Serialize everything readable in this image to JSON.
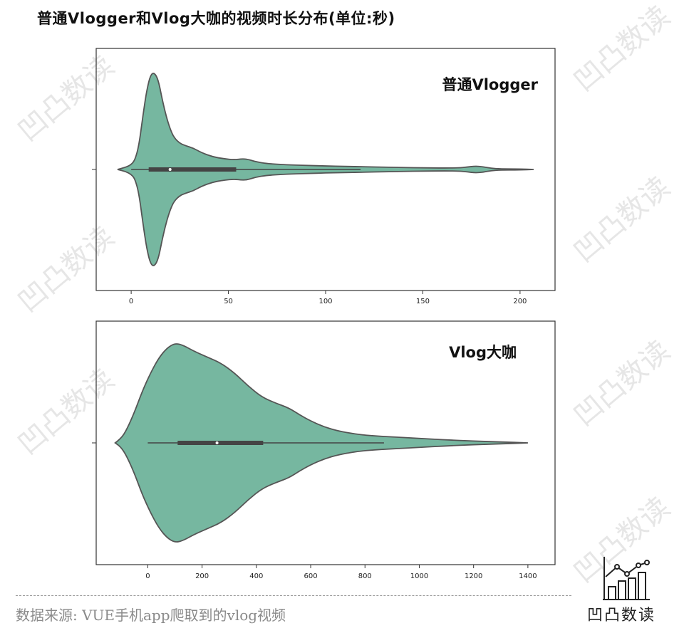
{
  "title": "普通Vlogger和Vlog大咖的视频时长分布(单位:秒)",
  "source": "数据来源: VUE手机app爬取到的vlog视频",
  "logo_text": "凹凸数读",
  "watermark": "凹凸数读",
  "colors": {
    "violin_fill": "#76b7a0",
    "violin_stroke": "#555555",
    "box": "#444444",
    "median": "#ffffff"
  },
  "chart_data": [
    {
      "type": "violin",
      "label": "普通Vlogger",
      "xlim": [
        -18,
        218
      ],
      "xticks": [
        0,
        50,
        100,
        150,
        200
      ],
      "box": {
        "q1": 9,
        "median": 20,
        "q3": 54,
        "whisker_low": 0,
        "whisker_high": 118
      },
      "density": [
        [
          -7,
          0.0
        ],
        [
          -3,
          0.02
        ],
        [
          0,
          0.05
        ],
        [
          2,
          0.1
        ],
        [
          4,
          0.25
        ],
        [
          6,
          0.55
        ],
        [
          8,
          0.82
        ],
        [
          10,
          0.98
        ],
        [
          12,
          1.0
        ],
        [
          14,
          0.92
        ],
        [
          16,
          0.72
        ],
        [
          18,
          0.55
        ],
        [
          20,
          0.42
        ],
        [
          22,
          0.33
        ],
        [
          25,
          0.27
        ],
        [
          28,
          0.245
        ],
        [
          32,
          0.22
        ],
        [
          36,
          0.175
        ],
        [
          42,
          0.13
        ],
        [
          48,
          0.11
        ],
        [
          53,
          0.1
        ],
        [
          57,
          0.11
        ],
        [
          60,
          0.105
        ],
        [
          64,
          0.08
        ],
        [
          70,
          0.06
        ],
        [
          80,
          0.048
        ],
        [
          90,
          0.042
        ],
        [
          100,
          0.036
        ],
        [
          110,
          0.032
        ],
        [
          120,
          0.028
        ],
        [
          130,
          0.024
        ],
        [
          140,
          0.02
        ],
        [
          150,
          0.017
        ],
        [
          160,
          0.015
        ],
        [
          168,
          0.016
        ],
        [
          173,
          0.025
        ],
        [
          177,
          0.035
        ],
        [
          181,
          0.028
        ],
        [
          185,
          0.012
        ],
        [
          190,
          0.006
        ],
        [
          200,
          0.005
        ],
        [
          207,
          0.0
        ]
      ],
      "annotation": "普通Vlogger"
    },
    {
      "type": "violin",
      "label": "Vlog大咖",
      "xlim": [
        -190,
        1500
      ],
      "xticks": [
        0,
        200,
        400,
        600,
        800,
        1000,
        1200,
        1400
      ],
      "box": {
        "q1": 110,
        "median": 255,
        "q3": 425,
        "whisker_low": 0,
        "whisker_high": 870
      },
      "density": [
        [
          -120,
          0.0
        ],
        [
          -100,
          0.04
        ],
        [
          -80,
          0.12
        ],
        [
          -50,
          0.3
        ],
        [
          -20,
          0.52
        ],
        [
          10,
          0.7
        ],
        [
          40,
          0.85
        ],
        [
          70,
          0.95
        ],
        [
          100,
          1.0
        ],
        [
          130,
          0.98
        ],
        [
          170,
          0.92
        ],
        [
          220,
          0.86
        ],
        [
          270,
          0.8
        ],
        [
          320,
          0.7
        ],
        [
          370,
          0.57
        ],
        [
          420,
          0.46
        ],
        [
          470,
          0.4
        ],
        [
          520,
          0.35
        ],
        [
          560,
          0.28
        ],
        [
          600,
          0.22
        ],
        [
          650,
          0.16
        ],
        [
          700,
          0.12
        ],
        [
          760,
          0.09
        ],
        [
          820,
          0.072
        ],
        [
          900,
          0.06
        ],
        [
          1000,
          0.045
        ],
        [
          1100,
          0.03
        ],
        [
          1200,
          0.018
        ],
        [
          1300,
          0.01
        ],
        [
          1400,
          0.0
        ]
      ],
      "annotation": "Vlog大咖"
    }
  ]
}
